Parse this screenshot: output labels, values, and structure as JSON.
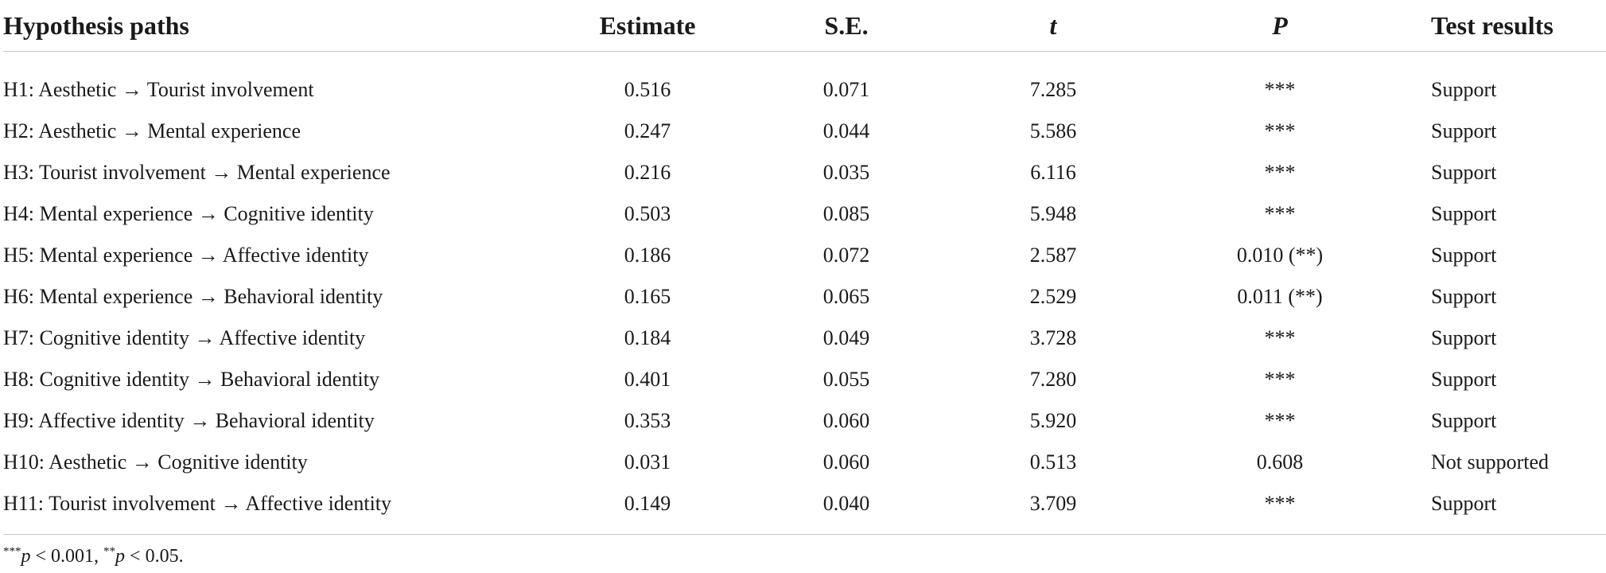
{
  "table": {
    "headers": [
      "Hypothesis paths",
      "Estimate",
      "S.E.",
      "t",
      "P",
      "Test results"
    ],
    "rows": [
      [
        "H1: Aesthetic → Tourist involvement",
        "0.516",
        "0.071",
        "7.285",
        "***",
        "Support"
      ],
      [
        "H2: Aesthetic → Mental experience",
        "0.247",
        "0.044",
        "5.586",
        "***",
        "Support"
      ],
      [
        "H3: Tourist involvement → Mental experience",
        "0.216",
        "0.035",
        "6.116",
        "***",
        "Support"
      ],
      [
        "H4: Mental experience → Cognitive identity",
        "0.503",
        "0.085",
        "5.948",
        "***",
        "Support"
      ],
      [
        "H5: Mental experience → Affective identity",
        "0.186",
        "0.072",
        "2.587",
        "0.010 (**)",
        "Support"
      ],
      [
        "H6: Mental experience → Behavioral identity",
        "0.165",
        "0.065",
        "2.529",
        "0.011 (**)",
        "Support"
      ],
      [
        "H7: Cognitive identity → Affective identity",
        "0.184",
        "0.049",
        "3.728",
        "***",
        "Support"
      ],
      [
        "H8: Cognitive identity → Behavioral identity",
        "0.401",
        "0.055",
        "7.280",
        "***",
        "Support"
      ],
      [
        "H9: Affective identity → Behavioral identity",
        "0.353",
        "0.060",
        "5.920",
        "***",
        "Support"
      ],
      [
        "H10: Aesthetic → Cognitive identity",
        "0.031",
        "0.060",
        "0.513",
        "0.608",
        "Not supported"
      ],
      [
        "H11: Tourist involvement → Affective identity",
        "0.149",
        "0.040",
        "3.709",
        "***",
        "Support"
      ]
    ]
  },
  "footnote": {
    "sig1_marker": "***",
    "sig1_var": "p",
    "sig1_rest": " < 0.001, ",
    "sig2_marker": "**",
    "sig2_var": "p",
    "sig2_rest": " < 0.05."
  }
}
